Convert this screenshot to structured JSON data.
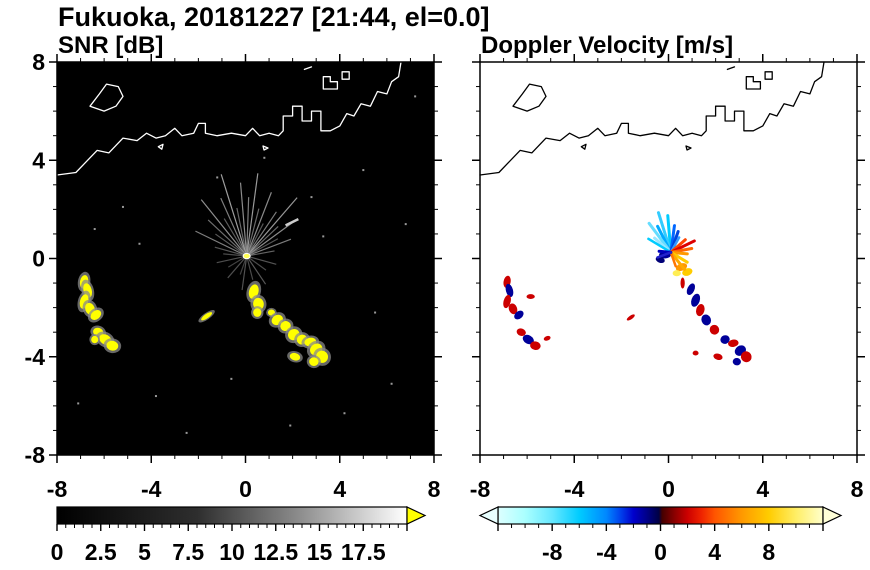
{
  "title": "Fukuoka, 20181227 [21:44, el=0.0]",
  "axes": {
    "min": -8,
    "max": 8,
    "minor_step": 1,
    "major": [
      -8,
      -4,
      0,
      4,
      8
    ],
    "x_tick_labels": [
      "-8",
      "-4",
      "0",
      "4",
      "8"
    ],
    "y_tick_labels": [
      "8",
      "4",
      "0",
      "-4",
      "-8"
    ]
  },
  "chart_data": [
    {
      "type": "heatmap",
      "name": "SNR",
      "title": "SNR [dB]",
      "units": "dB",
      "xlim": [
        -8,
        8
      ],
      "ylim": [
        -8,
        8
      ],
      "background": "#000000",
      "coast_color": "#ffffff",
      "echo_color": "#ffff00",
      "colorbar": {
        "min": 0,
        "max": 20,
        "minor_step": 0.5,
        "major_step": 2.5,
        "label_values": [
          0,
          2.5,
          5,
          7.5,
          10,
          12.5,
          15,
          17.5
        ],
        "label_texts": [
          "0",
          "2.5",
          "5",
          "7.5",
          "10",
          "12.5",
          "15",
          "17.5"
        ],
        "stops": [
          [
            0,
            "#000000"
          ],
          [
            0.4,
            "#2e2e2e"
          ],
          [
            0.7,
            "#8f8f8f"
          ],
          [
            1,
            "#ffffff"
          ]
        ],
        "over_arrow": "#ffff00"
      },
      "center": {
        "x": 0.05,
        "y": 0.1,
        "w": 0.3,
        "h": 0.22
      },
      "bright_dash": {
        "x": 1.7,
        "y": 1.35,
        "ang": 25,
        "len": 0.6
      },
      "echoes": [
        [
          -6.85,
          -0.95,
          0.35,
          0.55,
          10
        ],
        [
          -6.7,
          -1.3,
          0.35,
          0.6,
          -15
        ],
        [
          -6.85,
          -1.75,
          0.35,
          0.6,
          15
        ],
        [
          -6.6,
          -2.05,
          0.4,
          0.5,
          -20
        ],
        [
          -6.35,
          -2.3,
          0.5,
          0.35,
          -40
        ],
        [
          -6.25,
          -3.0,
          0.45,
          0.35,
          20
        ],
        [
          -5.95,
          -3.3,
          0.55,
          0.4,
          30
        ],
        [
          -5.65,
          -3.55,
          0.5,
          0.4,
          10
        ],
        [
          -6.4,
          -3.3,
          0.3,
          0.3,
          0
        ],
        [
          0.35,
          -1.35,
          0.4,
          0.6,
          15
        ],
        [
          0.55,
          -1.85,
          0.45,
          0.5,
          -10
        ],
        [
          0.5,
          -2.2,
          0.35,
          0.35,
          0
        ],
        [
          1.1,
          -2.2,
          0.3,
          0.25,
          0
        ],
        [
          1.35,
          -2.5,
          0.5,
          0.4,
          -30
        ],
        [
          1.7,
          -2.75,
          0.45,
          0.4,
          -25
        ],
        [
          2.05,
          -3.1,
          0.5,
          0.45,
          -30
        ],
        [
          2.4,
          -3.3,
          0.45,
          0.4,
          -20
        ],
        [
          2.75,
          -3.4,
          0.5,
          0.35,
          -10
        ],
        [
          3.0,
          -3.7,
          0.55,
          0.45,
          -35
        ],
        [
          3.25,
          -4.0,
          0.5,
          0.5,
          -30
        ],
        [
          2.9,
          -4.2,
          0.4,
          0.35,
          10
        ],
        [
          2.1,
          -4.0,
          0.45,
          0.3,
          15
        ],
        [
          -1.65,
          -2.35,
          0.55,
          0.18,
          -35
        ]
      ],
      "radial_streaks": [
        [
          10,
          1.2,
          "#6e6e6e"
        ],
        [
          20,
          2.0,
          "#8a8a8a"
        ],
        [
          28,
          1.5,
          "#5f5f5f"
        ],
        [
          35,
          2.6,
          "#9a9a9a"
        ],
        [
          42,
          1.8,
          "#777777"
        ],
        [
          48,
          3.2,
          "#a8a8a8"
        ],
        [
          55,
          2.2,
          "#8a8a8a"
        ],
        [
          62,
          1.5,
          "#636363"
        ],
        [
          68,
          2.8,
          "#999999"
        ],
        [
          75,
          2.0,
          "#767676"
        ],
        [
          82,
          3.4,
          "#ababab"
        ],
        [
          88,
          2.4,
          "#8d8d8d"
        ],
        [
          95,
          3.0,
          "#9c9c9c"
        ],
        [
          102,
          2.0,
          "#747474"
        ],
        [
          108,
          3.5,
          "#b0b0b0"
        ],
        [
          115,
          2.6,
          "#8b8b8b"
        ],
        [
          122,
          1.8,
          "#666666"
        ],
        [
          130,
          3.0,
          "#9d9d9d"
        ],
        [
          138,
          2.2,
          "#7a7a7a"
        ],
        [
          146,
          1.6,
          "#646464"
        ],
        [
          155,
          2.4,
          "#8c8c8c"
        ],
        [
          165,
          1.4,
          "#606060"
        ],
        [
          175,
          1.0,
          "#555555"
        ],
        [
          192,
          1.3,
          "#575757"
        ],
        [
          210,
          0.9,
          "#4a4a4a"
        ],
        [
          228,
          1.2,
          "#575757"
        ],
        [
          250,
          0.8,
          "#484848"
        ],
        [
          262,
          1.4,
          "#5a5a5a"
        ],
        [
          285,
          1.0,
          "#515151"
        ],
        [
          305,
          1.4,
          "#616161"
        ],
        [
          325,
          1.0,
          "#535353"
        ],
        [
          345,
          1.3,
          "#5e5e5e"
        ]
      ],
      "speckles": [
        [
          -5.2,
          2.1
        ],
        [
          -3.8,
          -5.6
        ],
        [
          -1.2,
          3.3
        ],
        [
          2.8,
          2.5
        ],
        [
          5.5,
          -2.2
        ],
        [
          6.8,
          1.4
        ],
        [
          -7.1,
          -5.9
        ],
        [
          4.2,
          -6.3
        ],
        [
          -2.5,
          -7.1
        ],
        [
          0.8,
          4.1
        ],
        [
          -4.5,
          0.6
        ],
        [
          6.2,
          -5.1
        ],
        [
          7.2,
          6.6
        ],
        [
          3.3,
          0.9
        ],
        [
          -6.4,
          1.2
        ],
        [
          1.9,
          -6.8
        ],
        [
          -0.6,
          -4.9
        ],
        [
          5.0,
          3.6
        ]
      ]
    },
    {
      "type": "heatmap",
      "name": "Doppler Velocity",
      "title": "Doppler Velocity [m/s]",
      "units": "m/s",
      "xlim": [
        -8,
        8
      ],
      "ylim": [
        -8,
        8
      ],
      "background": "#ffffff",
      "coast_color": "#000000",
      "colorbar": {
        "min": -12,
        "max": 12,
        "minor_step": 1,
        "major_step": 4,
        "label_values": [
          -8,
          -4,
          0,
          4,
          8
        ],
        "label_texts": [
          "-8",
          "-4",
          "0",
          "4",
          "8"
        ],
        "stops": [
          [
            0,
            "#ddffff"
          ],
          [
            0.083,
            "#aaffff"
          ],
          [
            0.167,
            "#66e8ff"
          ],
          [
            0.25,
            "#00ccff"
          ],
          [
            0.333,
            "#0088ff"
          ],
          [
            0.375,
            "#0044ee"
          ],
          [
            0.417,
            "#0000cc"
          ],
          [
            0.458,
            "#000088"
          ],
          [
            0.495,
            "#000044"
          ],
          [
            0.505,
            "#440000"
          ],
          [
            0.542,
            "#880000"
          ],
          [
            0.583,
            "#cc0000"
          ],
          [
            0.625,
            "#ee2200"
          ],
          [
            0.667,
            "#ff5500"
          ],
          [
            0.75,
            "#ff9900"
          ],
          [
            0.833,
            "#ffcc00"
          ],
          [
            0.917,
            "#ffee66"
          ],
          [
            1,
            "#ffffcc"
          ]
        ],
        "under_arrow": "#e8ffff",
        "over_arrow": "#ffffd8"
      },
      "spike_center": {
        "x": 0.1,
        "y": 0.25
      },
      "spikes": [
        [
          95,
          1.5,
          "#00ccff",
          3
        ],
        [
          108,
          1.7,
          "#33ccff",
          3
        ],
        [
          118,
          1.2,
          "#00aaff",
          3
        ],
        [
          128,
          1.5,
          "#66ddff",
          3
        ],
        [
          140,
          0.9,
          "#99e6ff",
          3
        ],
        [
          150,
          1.1,
          "#00ccff",
          2.5
        ],
        [
          82,
          1.1,
          "#0066ff",
          3
        ],
        [
          70,
          0.9,
          "#0044dd",
          3
        ],
        [
          60,
          0.7,
          "#3399ff",
          2.5
        ],
        [
          40,
          0.8,
          "#ff4400",
          3
        ],
        [
          25,
          1.1,
          "#dd0000",
          3
        ],
        [
          10,
          0.9,
          "#ff6600",
          3
        ],
        [
          -5,
          0.7,
          "#ff9900",
          3
        ],
        [
          -30,
          0.8,
          "#ffcc00",
          3
        ],
        [
          -50,
          0.9,
          "#ffaa00",
          3
        ],
        [
          -70,
          0.6,
          "#ff7700",
          2.5
        ],
        [
          175,
          0.5,
          "#0000bb",
          3
        ],
        [
          200,
          0.6,
          "#2222cc",
          2.5
        ]
      ],
      "echoes": [
        [
          -6.85,
          -0.95,
          0.3,
          0.5,
          10,
          "#cc0000"
        ],
        [
          -6.75,
          -1.3,
          0.3,
          0.55,
          -15,
          "#000099"
        ],
        [
          -6.85,
          -1.75,
          0.3,
          0.55,
          15,
          "#cc0000"
        ],
        [
          -6.6,
          -2.05,
          0.35,
          0.45,
          -20,
          "#cc0000"
        ],
        [
          -6.35,
          -2.3,
          0.45,
          0.3,
          -40,
          "#000099"
        ],
        [
          -5.85,
          -1.55,
          0.35,
          0.2,
          0,
          "#cc0000"
        ],
        [
          -6.25,
          -3.0,
          0.4,
          0.3,
          20,
          "#cc0000"
        ],
        [
          -5.95,
          -3.3,
          0.5,
          0.35,
          30,
          "#000099"
        ],
        [
          -5.65,
          -3.55,
          0.45,
          0.35,
          10,
          "#cc0000"
        ],
        [
          -5.15,
          -3.25,
          0.3,
          0.18,
          -20,
          "#cc0000"
        ],
        [
          0.95,
          -1.25,
          0.3,
          0.5,
          25,
          "#000099"
        ],
        [
          1.15,
          -1.7,
          0.35,
          0.55,
          20,
          "#000099"
        ],
        [
          1.35,
          -2.1,
          0.35,
          0.5,
          15,
          "#cc0000"
        ],
        [
          1.6,
          -2.5,
          0.4,
          0.45,
          -20,
          "#000099"
        ],
        [
          1.95,
          -2.9,
          0.4,
          0.4,
          -25,
          "#cc0000"
        ],
        [
          2.4,
          -3.3,
          0.4,
          0.35,
          -20,
          "#000099"
        ],
        [
          2.75,
          -3.45,
          0.45,
          0.3,
          -10,
          "#cc0000"
        ],
        [
          3.05,
          -3.75,
          0.5,
          0.4,
          -35,
          "#000099"
        ],
        [
          3.3,
          -4.0,
          0.45,
          0.45,
          -30,
          "#cc0000"
        ],
        [
          2.9,
          -4.2,
          0.35,
          0.3,
          10,
          "#000099"
        ],
        [
          2.1,
          -4.0,
          0.4,
          0.25,
          15,
          "#cc0000"
        ],
        [
          -1.6,
          -2.4,
          0.4,
          0.15,
          -35,
          "#cc0000"
        ],
        [
          1.15,
          -3.85,
          0.25,
          0.2,
          0,
          "#cc0000"
        ],
        [
          -0.15,
          0.15,
          0.5,
          0.3,
          0,
          "#000099"
        ],
        [
          -0.35,
          -0.05,
          0.4,
          0.25,
          20,
          "#000077"
        ],
        [
          0.55,
          -0.35,
          0.5,
          0.3,
          -20,
          "#ff9900"
        ],
        [
          0.8,
          -0.55,
          0.45,
          0.3,
          -20,
          "#ffcc00"
        ],
        [
          0.35,
          -0.6,
          0.35,
          0.25,
          0,
          "#ffee55"
        ],
        [
          0.6,
          -1.0,
          0.18,
          0.45,
          0,
          "#cc0000"
        ]
      ]
    }
  ]
}
